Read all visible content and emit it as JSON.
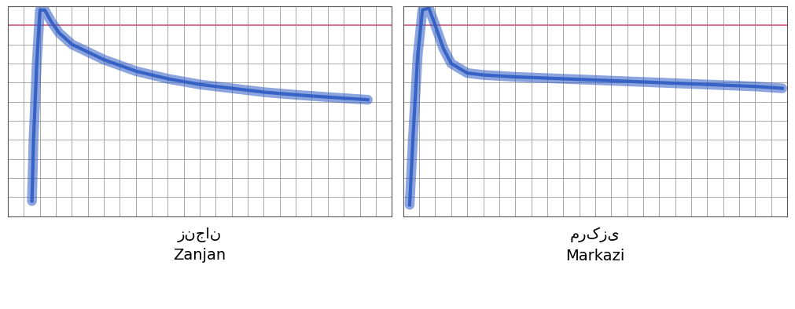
{
  "chart_data": [
    {
      "type": "line",
      "xlabel": "زنجان\nZanjan",
      "x": [
        1.5,
        1.6,
        1.8,
        2.0,
        2.3,
        2.7,
        3.2,
        4.0,
        5.0,
        6.0,
        7.0,
        8.0,
        10.0,
        12.0,
        14.0,
        16.0,
        18.0,
        20.0,
        22.5
      ],
      "values": [
        40,
        200,
        400,
        540,
        540,
        510,
        480,
        450,
        430,
        410,
        395,
        380,
        360,
        345,
        335,
        325,
        318,
        312,
        305
      ],
      "color": "#2f5cc4",
      "reference": 500,
      "reference_color": "#e0607e",
      "xlim": [
        0,
        24
      ],
      "ylim": [
        0,
        550
      ],
      "xticks": [
        0,
        1,
        2,
        3,
        4,
        5,
        6,
        7,
        8,
        9,
        10,
        11,
        12,
        13,
        14,
        15,
        16,
        17,
        18,
        19,
        20,
        21,
        22,
        23,
        24
      ],
      "yticks": [
        0,
        50,
        100,
        150,
        200,
        250,
        300,
        350,
        400,
        450,
        500,
        550
      ],
      "grid": true,
      "tick_labels": false
    },
    {
      "type": "line",
      "xlabel": "مرکزی\nMarkazi",
      "x": [
        0.4,
        0.6,
        0.9,
        1.2,
        1.6,
        2.0,
        2.5,
        3.0,
        4.0,
        5.0,
        7.0,
        10.0,
        13.0,
        16.0,
        19.0,
        22.0,
        23.7
      ],
      "values": [
        30,
        200,
        420,
        540,
        545,
        500,
        440,
        400,
        375,
        370,
        365,
        360,
        355,
        350,
        345,
        340,
        335
      ],
      "color": "#2f5cc4",
      "reference": 500,
      "reference_color": "#e0607e",
      "xlim": [
        0,
        24
      ],
      "ylim": [
        0,
        550
      ],
      "xticks": [
        0,
        1,
        2,
        3,
        4,
        5,
        6,
        7,
        8,
        9,
        10,
        11,
        12,
        13,
        14,
        15,
        16,
        17,
        18,
        19,
        20,
        21,
        22,
        23,
        24
      ],
      "yticks": [
        0,
        50,
        100,
        150,
        200,
        250,
        300,
        350,
        400,
        450,
        500,
        550
      ],
      "grid": true,
      "tick_labels": false
    }
  ]
}
